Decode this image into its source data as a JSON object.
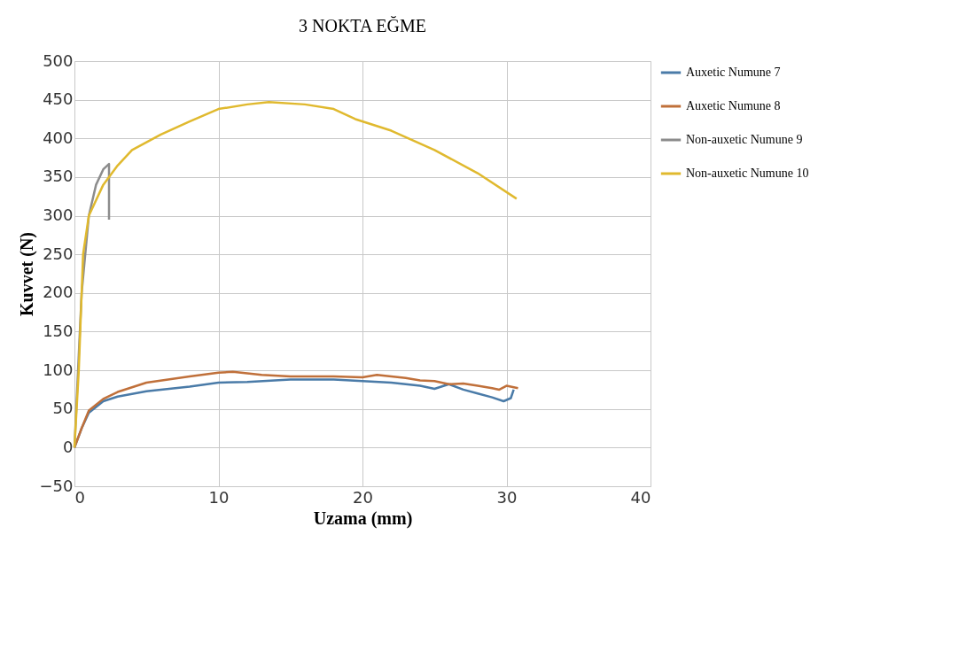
{
  "chart_data": {
    "type": "line",
    "title": "3 NOKTA EĞME",
    "xlabel": "Uzama (mm)",
    "ylabel": "Kuvvet (N)",
    "xlim": [
      0,
      40
    ],
    "xticks": [
      0,
      10,
      20,
      30,
      40
    ],
    "ylim": [
      -50,
      500
    ],
    "yticks": [
      -50,
      0,
      50,
      100,
      150,
      200,
      250,
      300,
      350,
      400,
      450,
      500
    ],
    "grid": true,
    "legend": "right",
    "marker": "none",
    "line_style": "solid",
    "series": [
      {
        "name": "Auxetic Numune 7",
        "color": "#4a7ba8",
        "x": [
          0,
          0.5,
          1,
          2,
          3,
          5,
          8,
          10,
          12,
          15,
          18,
          20,
          22,
          24,
          25,
          26,
          27,
          28,
          29,
          29.8,
          30.3,
          30.5
        ],
        "values": [
          0,
          25,
          45,
          60,
          66,
          73,
          79,
          84,
          85,
          88,
          88,
          86,
          84,
          80,
          76,
          82,
          75,
          70,
          65,
          60,
          64,
          75
        ]
      },
      {
        "name": "Auxetic Numune 8",
        "color": "#c0703a",
        "x": [
          0,
          0.5,
          1,
          2,
          3,
          5,
          8,
          10,
          11,
          13,
          15,
          18,
          20,
          21,
          23,
          24,
          25,
          26,
          27,
          28,
          29,
          29.5,
          30,
          30.8
        ],
        "values": [
          0,
          25,
          48,
          63,
          72,
          84,
          92,
          97,
          98,
          94,
          92,
          92,
          91,
          94,
          90,
          87,
          86,
          82,
          83,
          80,
          77,
          75,
          80,
          77
        ]
      },
      {
        "name": "Non-auxetic Numune 9",
        "color": "#8c8c8c",
        "x": [
          0,
          0.5,
          1,
          1.5,
          2,
          2.4,
          2.4
        ],
        "values": [
          0,
          200,
          300,
          340,
          360,
          367,
          295
        ]
      },
      {
        "name": "Non-auxetic Numune 10",
        "color": "#e0b92e",
        "x": [
          0,
          0.3,
          0.6,
          1,
          2,
          3,
          4,
          6,
          8,
          10,
          12,
          13.5,
          16,
          18,
          19.5,
          22,
          25,
          28,
          30.7
        ],
        "values": [
          0,
          100,
          250,
          300,
          340,
          365,
          385,
          405,
          422,
          438,
          444,
          447,
          444,
          438,
          425,
          410,
          385,
          355,
          322
        ]
      }
    ]
  }
}
